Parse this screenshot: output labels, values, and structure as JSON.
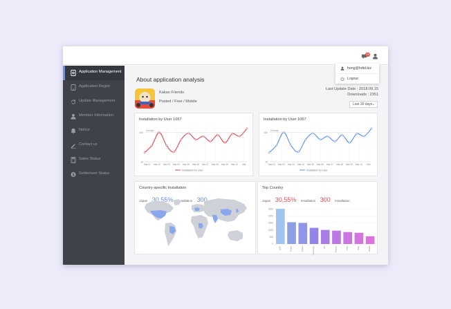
{
  "colors": {
    "accent": "#6e8ef7",
    "red_line": "#e0474c",
    "blue_line": "#5a8dee",
    "sidebar_bg": "#3f4248"
  },
  "topbar": {
    "notification_count": "15"
  },
  "dropdown": {
    "email": "hong@hdtd.biz",
    "logout": "Logout"
  },
  "sidebar": {
    "items": [
      {
        "label": "Application Management",
        "icon": "app-icon"
      },
      {
        "label": "Application Regist",
        "icon": "regist-icon"
      },
      {
        "label": "Update Management",
        "icon": "refresh-icon"
      },
      {
        "label": "Member Information",
        "icon": "user-icon"
      },
      {
        "label": "Notice",
        "icon": "bell-icon"
      },
      {
        "label": "Contact us",
        "icon": "pencil-icon"
      },
      {
        "label": "Sales Status",
        "icon": "calculator-icon"
      },
      {
        "label": "Settlement Status",
        "icon": "dollar-icon"
      }
    ]
  },
  "main": {
    "title": "About application analysis",
    "app_name": "Kakao Friends",
    "app_meta": "Posted / Free / Mobile",
    "last_update": "Last Update Date : 2018.09.15",
    "downloads": "Downloads : 2351",
    "range": "Last 30 days"
  },
  "cards": {
    "install_red": {
      "title": "Installation by User 1067",
      "legend": "Installation by User"
    },
    "install_blue": {
      "title": "Installation by User 1067",
      "legend": "Installation by User"
    },
    "country": {
      "title": "Country-specific Installation",
      "label_a": "Japan",
      "pct": "30,55%",
      "label_b": "Installation",
      "num": "300",
      "label_c": "Installation"
    },
    "top": {
      "title": "Top Country",
      "label_a": "Japan",
      "pct": "30,55%",
      "label_b": "Installation",
      "num": "300",
      "label_c": "Installation"
    }
  },
  "chart_data": [
    {
      "type": "line",
      "title": "Installation by User 1067",
      "x": [
        "Mar 01",
        "Mar 02",
        "Mar 03",
        "Mar 04",
        "Mar 05",
        "Mar 06",
        "Mar 07",
        "Mar 08",
        "Mar 09",
        "Mar 10",
        "Mar 11",
        "Mar 12",
        "Mar 13",
        "Mar 14",
        "Mar 15"
      ],
      "x_ticks": [
        "Mar 01",
        "Mar 02",
        "Mar 03",
        "Mar 04",
        "Mar 05",
        "Mar 06",
        "Mar 07",
        "Mar 08",
        "Mar 09",
        "Mar 10",
        "Mar"
      ],
      "y_ticks": [
        "100",
        "10"
      ],
      "reference_label": "Average",
      "series": [
        {
          "name": "Installation by User",
          "color": "#e0474c",
          "values": [
            38,
            60,
            100,
            60,
            40,
            78,
            97,
            78,
            88,
            72,
            92,
            68,
            96,
            88,
            112
          ]
        }
      ],
      "ylim": [
        10,
        120
      ]
    },
    {
      "type": "line",
      "title": "Installation by User 1067",
      "x": [
        "Mar 01",
        "Mar 02",
        "Mar 03",
        "Mar 04",
        "Mar 05",
        "Mar 06",
        "Mar 07",
        "Mar 08",
        "Mar 09",
        "Mar 10",
        "Mar 11",
        "Mar 12",
        "Mar 13",
        "Mar 14",
        "Mar 15"
      ],
      "x_ticks": [
        "Mar 01",
        "Mar 02",
        "Mar 03",
        "Mar 04",
        "Mar 05",
        "Mar 06",
        "Mar 07",
        "Mar 08",
        "Mar 09",
        "Mar 10",
        "Mar"
      ],
      "y_ticks": [
        "100",
        "10"
      ],
      "reference_label": "Average",
      "series": [
        {
          "name": "Installation by User",
          "color": "#5a8dee",
          "values": [
            38,
            60,
            100,
            60,
            40,
            78,
            97,
            78,
            88,
            72,
            92,
            68,
            96,
            88,
            112
          ]
        }
      ],
      "ylim": [
        10,
        120
      ]
    },
    {
      "type": "bar",
      "title": "Top Country",
      "categories": [
        "USA",
        "China",
        "Japan",
        "Germany",
        "UK",
        "France",
        "India",
        "Italy",
        "Brazil"
      ],
      "values": [
        2500,
        1550,
        1500,
        1150,
        1000,
        950,
        850,
        800,
        550
      ],
      "y_ticks": [
        "2500",
        "2000",
        "1500",
        "1000",
        "500",
        "0"
      ],
      "colors": [
        "#9ec4ef",
        "#8f9fe6",
        "#9296e8",
        "#9385e7",
        "#aa7de6",
        "#bc79e6",
        "#c976e3",
        "#d474e1",
        "#dc72e0"
      ],
      "ylim": [
        0,
        2800
      ]
    }
  ]
}
